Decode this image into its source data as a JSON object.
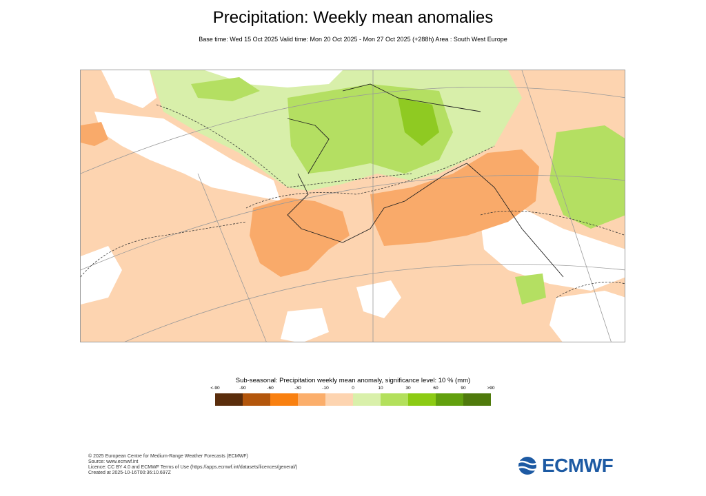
{
  "header": {
    "title": "Precipitation: Weekly mean anomalies",
    "subtitle": "Base time: Wed 15 Oct 2025 Valid time: Mon 20 Oct 2025 - Mon 27 Oct 2025 (+288h) Area : South West Europe"
  },
  "legend": {
    "title": "Sub-seasonal: Precipitation weekly mean anomaly, significance level: 10 % (mm)",
    "ticks": [
      "<-90",
      "-90",
      "-60",
      "-30",
      "-10",
      "0",
      "10",
      "30",
      "60",
      "90",
      ">90"
    ],
    "colors": [
      "#5a2d0c",
      "#b3560c",
      "#f98010",
      "#fbae6b",
      "#fdd4b0",
      "#d9f0aa",
      "#b3e05c",
      "#8ccb14",
      "#62a00e",
      "#4f7a0c"
    ]
  },
  "map": {
    "colors": {
      "light_orange": "#fdd4b0",
      "orange": "#f9aa6a",
      "light_green": "#d8efaa",
      "mid_green": "#b4df62",
      "green": "#8fca22"
    }
  },
  "footer": {
    "lines": [
      "© 2025 European Centre for Medium-Range Weather Forecasts (ECMWF)",
      "Source: www.ecmwf.int",
      "Licence: CC BY 4.0 and ECMWF Terms of Use (https://apps.ecmwf.int/datasets/licences/general/)",
      "Created at 2025-10-16T00:36:10.697Z"
    ]
  },
  "logo": {
    "text": "ECMWF"
  }
}
